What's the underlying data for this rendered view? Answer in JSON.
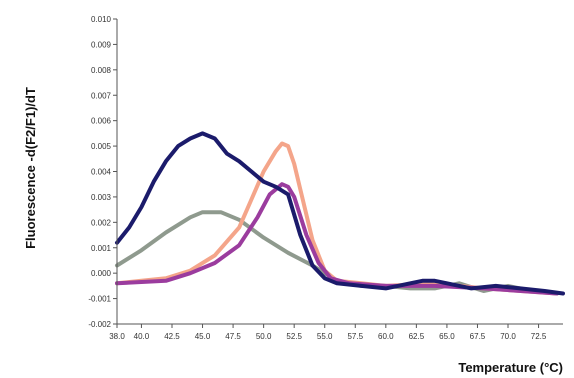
{
  "chart_data": {
    "type": "line",
    "xlabel": "Temperature (°C)",
    "ylabel": "Fluorescence -d(F2/F1)/dT",
    "xlim": [
      38.0,
      74.5
    ],
    "ylim": [
      -0.002,
      0.01
    ],
    "x_ticks": [
      "38.0",
      "40.0",
      "42.5",
      "45.0",
      "47.5",
      "50.0",
      "52.5",
      "55.0",
      "57.5",
      "60.0",
      "62.5",
      "65.0",
      "67.5",
      "70.0",
      "72.5"
    ],
    "y_ticks": [
      "-0.002",
      "-0.001",
      "0.000",
      "0.001",
      "0.002",
      "0.003",
      "0.004",
      "0.005",
      "0.006",
      "0.007",
      "0.008",
      "0.009",
      "0.010"
    ],
    "grid": false,
    "series": [
      {
        "color": "#8f9a8e",
        "points": [
          [
            38,
            0.0003
          ],
          [
            40,
            0.0009
          ],
          [
            42,
            0.0016
          ],
          [
            44,
            0.0022
          ],
          [
            45,
            0.0024
          ],
          [
            46.5,
            0.0024
          ],
          [
            48,
            0.0021
          ],
          [
            50,
            0.0014
          ],
          [
            52,
            0.0008
          ],
          [
            54,
            0.0003
          ],
          [
            55,
            0.0
          ],
          [
            56,
            -0.0003
          ],
          [
            58,
            -0.0005
          ],
          [
            60,
            -0.0005
          ],
          [
            62,
            -0.0006
          ],
          [
            64,
            -0.0006
          ],
          [
            66,
            -0.0004
          ],
          [
            68,
            -0.0007
          ],
          [
            70,
            -0.0005
          ],
          [
            72,
            -0.0007
          ],
          [
            74,
            -0.0008
          ]
        ]
      },
      {
        "color": "#f4a58a",
        "points": [
          [
            38,
            -0.0004
          ],
          [
            40,
            -0.0003
          ],
          [
            42,
            -0.0002
          ],
          [
            44,
            0.0001
          ],
          [
            46,
            0.0007
          ],
          [
            48,
            0.0018
          ],
          [
            49,
            0.0029
          ],
          [
            50,
            0.004
          ],
          [
            51,
            0.0048
          ],
          [
            51.5,
            0.0051
          ],
          [
            52,
            0.005
          ],
          [
            52.5,
            0.0043
          ],
          [
            53,
            0.0033
          ],
          [
            54,
            0.0013
          ],
          [
            55,
            0.0001
          ],
          [
            56,
            -0.0003
          ],
          [
            58,
            -0.0004
          ],
          [
            60,
            -0.0005
          ],
          [
            64,
            -0.0004
          ],
          [
            68,
            -0.0006
          ],
          [
            74,
            -0.0008
          ]
        ]
      },
      {
        "color": "#9b3c9e",
        "points": [
          [
            38,
            -0.0004
          ],
          [
            42,
            -0.0003
          ],
          [
            44,
            0.0
          ],
          [
            46,
            0.0004
          ],
          [
            48,
            0.0011
          ],
          [
            49.5,
            0.0022
          ],
          [
            50.5,
            0.0031
          ],
          [
            51.5,
            0.0035
          ],
          [
            52,
            0.0034
          ],
          [
            52.5,
            0.003
          ],
          [
            53.5,
            0.0015
          ],
          [
            54.5,
            0.0004
          ],
          [
            55.5,
            -0.0002
          ],
          [
            57,
            -0.0004
          ],
          [
            60,
            -0.0005
          ],
          [
            64,
            -0.0005
          ],
          [
            68,
            -0.0006
          ],
          [
            74,
            -0.0008
          ]
        ]
      },
      {
        "color": "#1b1b6b",
        "points": [
          [
            38,
            0.0012
          ],
          [
            39,
            0.0018
          ],
          [
            40,
            0.0026
          ],
          [
            41,
            0.0036
          ],
          [
            42,
            0.0044
          ],
          [
            43,
            0.005
          ],
          [
            44,
            0.0053
          ],
          [
            45,
            0.0055
          ],
          [
            46,
            0.0053
          ],
          [
            47,
            0.0047
          ],
          [
            48,
            0.0044
          ],
          [
            49,
            0.004
          ],
          [
            50,
            0.0036
          ],
          [
            51,
            0.0034
          ],
          [
            52,
            0.0031
          ],
          [
            53,
            0.0015
          ],
          [
            54,
            0.0003
          ],
          [
            55,
            -0.0002
          ],
          [
            56,
            -0.0004
          ],
          [
            58,
            -0.0005
          ],
          [
            60,
            -0.0006
          ],
          [
            62,
            -0.0004
          ],
          [
            63,
            -0.0003
          ],
          [
            64,
            -0.0003
          ],
          [
            65,
            -0.0004
          ],
          [
            67,
            -0.0006
          ],
          [
            69,
            -0.0005
          ],
          [
            71,
            -0.0006
          ],
          [
            73,
            -0.0007
          ],
          [
            74.5,
            -0.0008
          ]
        ]
      }
    ]
  }
}
